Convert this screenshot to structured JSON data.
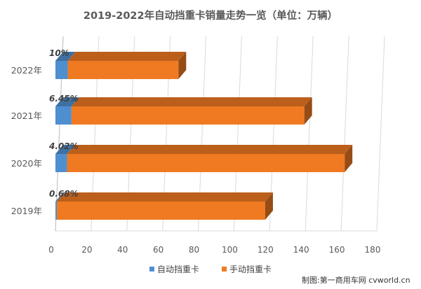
{
  "chart_data": {
    "type": "bar",
    "orientation": "horizontal",
    "stacked": true,
    "title": "2019-2022年自动挡重卡销量走势一览（单位：万辆）",
    "categories": [
      "2022年",
      "2021年",
      "2020年",
      "2019年"
    ],
    "series": [
      {
        "name": "自动挡重卡",
        "color": "#4f8fd0",
        "values": [
          6.9,
          9.0,
          6.5,
          0.8
        ]
      },
      {
        "name": "手动挡重卡",
        "color": "#f07a22",
        "values": [
          62.0,
          130.4,
          155.5,
          116.7
        ]
      }
    ],
    "data_labels": [
      "10%",
      "6.45%",
      "4.02%",
      "0.68%"
    ],
    "xlim": [
      0,
      180
    ],
    "xticks": [
      0,
      20,
      40,
      60,
      80,
      100,
      120,
      140,
      160,
      180
    ],
    "grid": true,
    "legend_position": "bottom",
    "three_d": true
  },
  "credit": "制图:第一商用车网 cvworld.cn"
}
